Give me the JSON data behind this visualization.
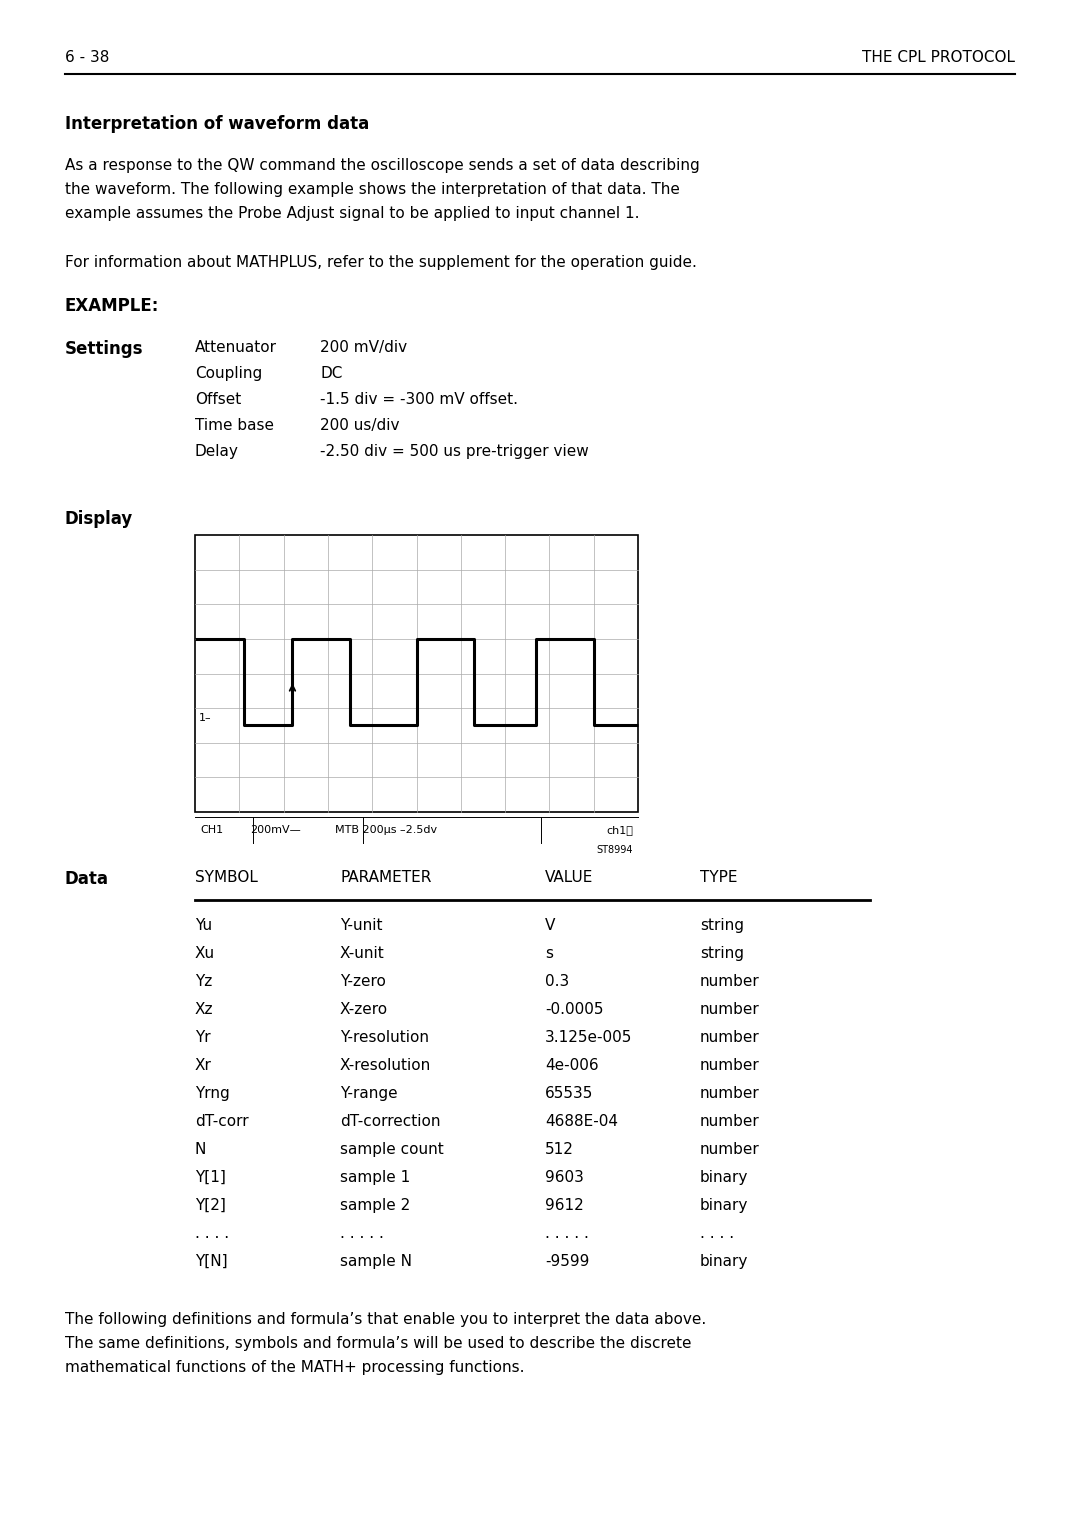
{
  "header_left": "6 - 38",
  "header_right": "THE CPL PROTOCOL",
  "section_title": "Interpretation of waveform data",
  "para1_lines": [
    "As a response to the QW command the oscilloscope sends a set of data describing",
    "the waveform. The following example shows the interpretation of that data. The",
    "example assumes the Probe Adjust signal to be applied to input channel 1."
  ],
  "para2": "For information about MATHPLUS, refer to the supplement for the operation guide.",
  "example_label": "EXAMPLE:",
  "settings_label": "Settings",
  "settings": [
    [
      "Attenuator",
      "200 mV/div"
    ],
    [
      "Coupling",
      "DC"
    ],
    [
      "Offset",
      "-1.5 div = -300 mV offset."
    ],
    [
      "Time base",
      "200 us/div"
    ],
    [
      "Delay",
      "-2.50 div = 500 us pre-trigger view"
    ]
  ],
  "display_label": "Display",
  "scope_caption_parts": [
    "CH1",
    "200mV—",
    "MTB 200μs –2.5dv",
    "ch1⎺"
  ],
  "scope_ref": "ST8994",
  "data_label": "Data",
  "table_headers": [
    "SYMBOL",
    "PARAMETER",
    "VALUE",
    "TYPE"
  ],
  "table_rows": [
    [
      "Yu",
      "Y-unit",
      "V",
      "string"
    ],
    [
      "Xu",
      "X-unit",
      "s",
      "string"
    ],
    [
      "Yz",
      "Y-zero",
      "0.3",
      "number"
    ],
    [
      "Xz",
      "X-zero",
      "-0.0005",
      "number"
    ],
    [
      "Yr",
      "Y-resolution",
      "3.125e-005",
      "number"
    ],
    [
      "Xr",
      "X-resolution",
      "4e-006",
      "number"
    ],
    [
      "Yrng",
      "Y-range",
      "65535",
      "number"
    ],
    [
      "dT-corr",
      "dT-correction",
      "4688E-04",
      "number"
    ],
    [
      "N",
      "sample count",
      "512",
      "number"
    ],
    [
      "Y[1]",
      "sample 1",
      "9603",
      "binary"
    ],
    [
      "Y[2]",
      "sample 2",
      "9612",
      "binary"
    ],
    [
      ". . . .",
      ". . . . .",
      ". . . . .",
      ". . . ."
    ],
    [
      "Y[N]",
      "sample N",
      "-9599",
      "binary"
    ]
  ],
  "footer_para_lines": [
    "The following definitions and formula’s that enable you to interpret the data above.",
    "The same definitions, symbols and formula’s will be used to describe the discrete",
    "mathematical functions of the MATH+ processing functions."
  ],
  "bg_color": "#ffffff",
  "text_color": "#000000"
}
